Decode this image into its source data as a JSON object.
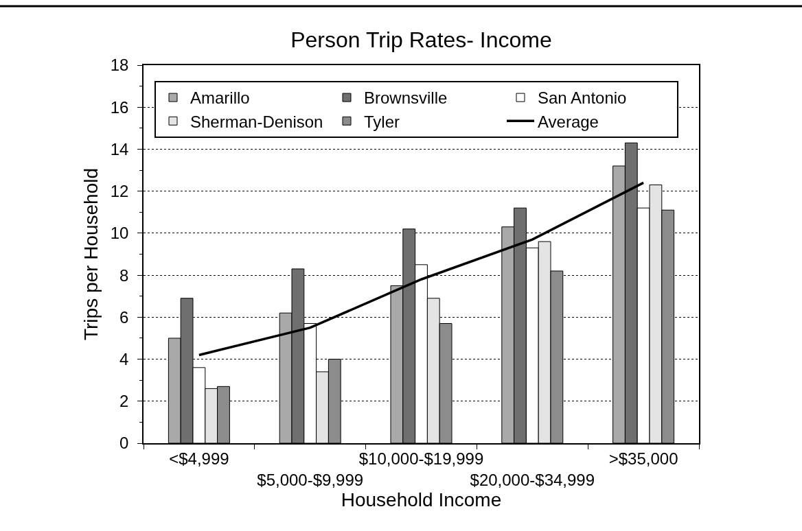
{
  "chart_data": {
    "type": "bar",
    "title": "Person Trip Rates- Income",
    "xlabel": "Household Income",
    "ylabel": "Trips per Household",
    "categories": [
      "<$4,999",
      "$5,000-$9,999",
      "$10,000-$19,999",
      "$20,000-$34,999",
      ">$35,000"
    ],
    "series": [
      {
        "name": "Amarillo",
        "color": "#a9a9a9",
        "values": [
          5.0,
          6.2,
          7.5,
          10.3,
          13.2
        ]
      },
      {
        "name": "Brownsville",
        "color": "#6f6f6f",
        "values": [
          6.9,
          8.3,
          10.2,
          11.2,
          14.3
        ]
      },
      {
        "name": "San Antonio",
        "color": "#ffffff",
        "values": [
          3.6,
          5.7,
          8.5,
          9.3,
          11.2
        ]
      },
      {
        "name": "Sherman-Denison",
        "color": "#e4e4e4",
        "values": [
          2.6,
          3.4,
          6.9,
          9.6,
          12.3
        ]
      },
      {
        "name": "Tyler",
        "color": "#8c8c8c",
        "values": [
          2.7,
          4.0,
          5.7,
          8.2,
          11.1
        ]
      },
      {
        "name": "Average",
        "type": "line",
        "color": "#000000",
        "values": [
          4.2,
          5.5,
          7.8,
          9.7,
          12.4
        ]
      }
    ],
    "ylim": [
      0,
      18
    ],
    "yticks": [
      0,
      {
        "value": 1,
        "label": null
      },
      2,
      {
        "value": 3,
        "label": null
      },
      4,
      {
        "value": 5,
        "label": null
      },
      6,
      {
        "value": 7,
        "label": null
      },
      8,
      {
        "value": 9,
        "label": null
      },
      10,
      {
        "value": 11,
        "label": null
      },
      12,
      {
        "value": 13,
        "label": null
      },
      14,
      {
        "value": 15,
        "label": null
      },
      16,
      {
        "value": 17,
        "label": null
      },
      18
    ],
    "grid": "y",
    "legend": "top",
    "marker": "none",
    "line_style": "solid"
  }
}
